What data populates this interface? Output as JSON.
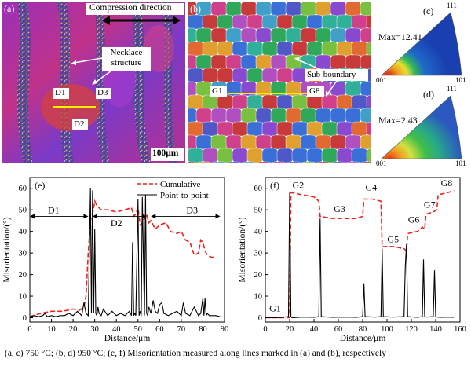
{
  "figure": {
    "panel_a": {
      "label": "(a)",
      "compression_label": "Compression direction",
      "necklace_label": "Necklace structure",
      "markers": [
        "D1",
        "D2",
        "D3"
      ],
      "scale_bar": "100μm"
    },
    "panel_b": {
      "label": "(b)",
      "subboundary_label": "Sub-boundary",
      "markers": [
        "G1",
        "G8"
      ]
    },
    "panel_c": {
      "label": "(c)",
      "max_text": "Max=12.41",
      "corners": [
        "001",
        "101",
        "111"
      ]
    },
    "panel_d": {
      "label": "(d)",
      "max_text": "Max=2.43",
      "corners": [
        "001",
        "101",
        "111"
      ]
    },
    "caption": "(a, c) 750 °C; (b, d) 950 °C; (e, f) Misorientation measured along lines marked in (a) and (b), respectively"
  },
  "chart_data": [
    {
      "type": "line",
      "panel_label": "(e)",
      "xlabel": "Distance/μm",
      "ylabel": "Misorientation/(°)",
      "xlim": [
        0,
        90
      ],
      "ylim": [
        -2,
        65
      ],
      "xticks": [
        0,
        10,
        20,
        30,
        40,
        50,
        60,
        70,
        80,
        90
      ],
      "yticks": [
        0,
        10,
        20,
        30,
        40,
        50,
        60
      ],
      "legend": [
        "Cumulative",
        "Point-to-point"
      ],
      "region_labels": [
        {
          "text": "D1",
          "x": 11,
          "y": 47
        },
        {
          "text": "D2",
          "x": 40,
          "y": 41
        },
        {
          "text": "D3",
          "x": 75,
          "y": 47
        }
      ],
      "region_spans": [
        [
          0,
          27
        ],
        [
          29,
          54
        ],
        [
          56,
          88
        ]
      ],
      "series": [
        {
          "name": "Cumulative",
          "color": "#e8241c",
          "dash": true,
          "x": [
            0,
            5,
            10,
            15,
            20,
            23,
            25,
            26,
            27,
            28,
            29,
            30,
            31,
            33,
            36,
            40,
            44,
            47,
            48,
            49,
            50,
            51,
            52,
            53,
            54,
            55,
            56,
            58,
            60,
            63,
            65,
            68,
            70,
            72,
            74,
            75,
            76,
            78,
            79,
            80,
            81,
            82,
            84,
            86
          ],
          "y": [
            0.5,
            2,
            3,
            3,
            4,
            3.5,
            5,
            10,
            30,
            45,
            48,
            54,
            52,
            50,
            50,
            49,
            50,
            51,
            47,
            48,
            51,
            43,
            44,
            46,
            48,
            44,
            45,
            41,
            43,
            44,
            40,
            39,
            40,
            36,
            35,
            32,
            29,
            30,
            36,
            35,
            31,
            29,
            28,
            28
          ]
        },
        {
          "name": "Point-to-point",
          "color": "#000000",
          "dash": false,
          "x": [
            0,
            2,
            4,
            6,
            7,
            8,
            10,
            12,
            14,
            16,
            18,
            20,
            22,
            24,
            25,
            26,
            27,
            28,
            28.5,
            29,
            29.5,
            30,
            30.5,
            31,
            31.5,
            32,
            33,
            34,
            36,
            38,
            40,
            42,
            44,
            46,
            47,
            47.5,
            48,
            48.5,
            49,
            50,
            50.5,
            51,
            51.5,
            52,
            53,
            53.5,
            54,
            54.5,
            55,
            56,
            57,
            58,
            59,
            60,
            61,
            62,
            64,
            66,
            68,
            70,
            71,
            72,
            74,
            76,
            78,
            79,
            80,
            80.5,
            81,
            81.5,
            82,
            83,
            84,
            86,
            88
          ],
          "y": [
            0.5,
            1,
            0.5,
            1,
            2,
            0.5,
            1,
            0.5,
            1,
            1,
            2,
            1,
            3,
            1,
            7,
            2,
            1,
            60,
            2,
            59,
            2,
            41,
            2,
            1,
            5,
            2,
            1,
            4,
            1,
            3,
            1,
            2,
            1,
            3,
            1,
            35,
            1,
            2,
            1,
            55,
            1,
            3,
            1,
            56,
            1,
            57,
            2,
            1,
            5,
            2,
            8,
            3,
            2,
            6,
            7,
            2,
            1,
            2,
            3,
            1,
            7,
            2,
            1,
            5,
            1,
            2,
            9,
            1,
            9,
            1,
            2,
            1,
            1,
            1,
            0.5
          ]
        }
      ]
    },
    {
      "type": "line",
      "panel_label": "(f)",
      "xlabel": "Distance/μm",
      "ylabel": "Misorientation/(°)",
      "xlim": [
        0,
        160
      ],
      "ylim": [
        -2,
        65
      ],
      "xticks": [
        0,
        20,
        40,
        60,
        80,
        100,
        120,
        140,
        160
      ],
      "yticks": [
        0,
        10,
        20,
        30,
        40,
        50,
        60
      ],
      "point_labels": [
        {
          "text": "G1",
          "x": 8,
          "y": 3
        },
        {
          "text": "G2",
          "x": 27,
          "y": 60
        },
        {
          "text": "G3",
          "x": 61,
          "y": 49
        },
        {
          "text": "G4",
          "x": 87,
          "y": 59
        },
        {
          "text": "G5",
          "x": 105,
          "y": 35
        },
        {
          "text": "G6",
          "x": 122,
          "y": 44
        },
        {
          "text": "G7",
          "x": 135,
          "y": 51
        },
        {
          "text": "G8",
          "x": 149,
          "y": 61
        }
      ],
      "series": [
        {
          "name": "",
          "color": "#e8241c",
          "dash": true,
          "x": [
            0,
            20,
            21,
            30,
            40,
            44,
            45,
            55,
            65,
            75,
            80,
            81,
            88,
            95,
            96,
            105,
            114,
            116,
            117,
            125,
            129,
            131,
            132,
            138,
            141,
            142,
            150,
            155
          ],
          "y": [
            0,
            0,
            58,
            57,
            56,
            54,
            47,
            46,
            46,
            46,
            47,
            55,
            55,
            54,
            33,
            33,
            32,
            31,
            39,
            40,
            42,
            41,
            48,
            49,
            50,
            57,
            58,
            59
          ]
        },
        {
          "name": "",
          "color": "#000000",
          "dash": false,
          "x": [
            0,
            10,
            19,
            20,
            21,
            22,
            30,
            40,
            44,
            45,
            46,
            55,
            65,
            75,
            80,
            81,
            82,
            90,
            95,
            96,
            97,
            105,
            114,
            115,
            116,
            117,
            125,
            129,
            130,
            131,
            132,
            138,
            139,
            140,
            141,
            145,
            150,
            155
          ],
          "y": [
            0,
            0,
            0.5,
            58,
            0.5,
            0,
            0.3,
            0.2,
            0.5,
            46,
            0.5,
            0.2,
            0.3,
            0.2,
            0.5,
            16,
            0.5,
            0.3,
            0.5,
            32,
            0.5,
            0.3,
            0.5,
            24,
            34,
            0.5,
            0.2,
            0.5,
            27,
            0.5,
            0.3,
            0.5,
            22,
            0.5,
            0.3,
            0.2,
            0.3,
            0.2
          ]
        }
      ]
    }
  ]
}
